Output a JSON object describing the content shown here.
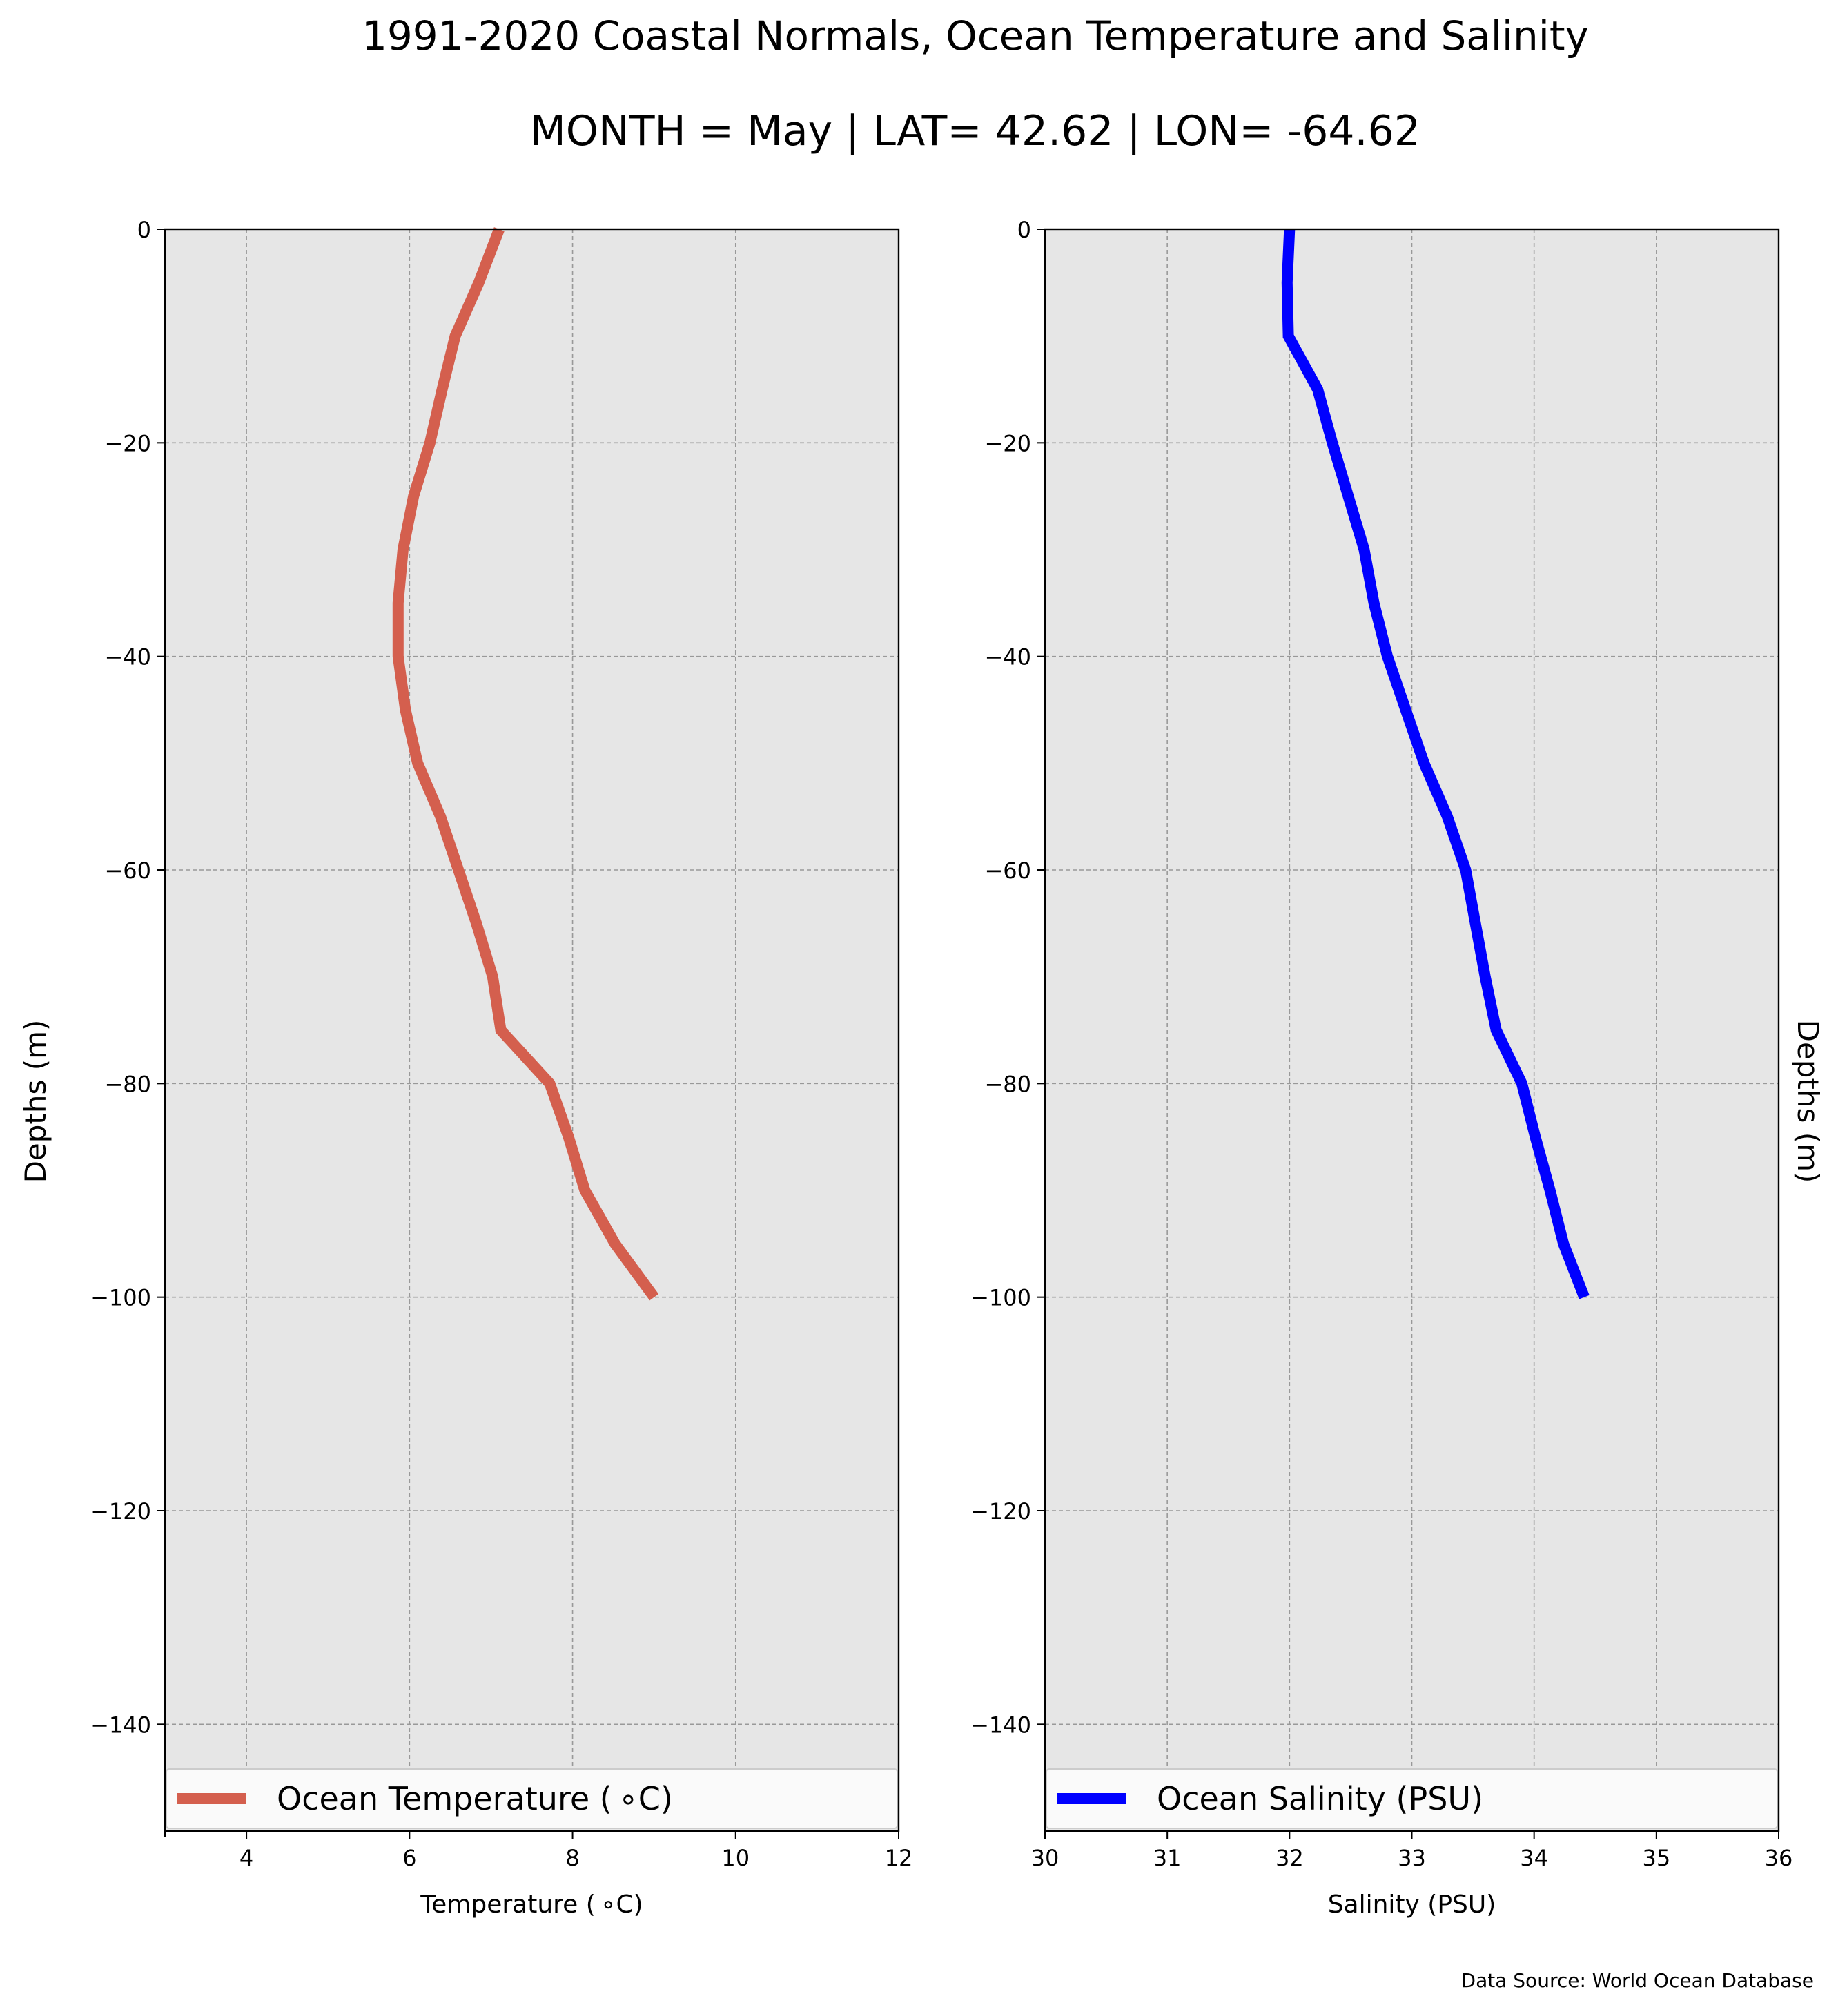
{
  "title": "1991-2020 Coastal Normals, Ocean Temperature and Salinity",
  "subtitle": "MONTH = May | LAT= 42.62 | LON= -64.62",
  "source": "Data Source: World Ocean Database",
  "colors": {
    "temperature": "#d45f4e",
    "salinity": "#0000ff",
    "plot_bg": "#e6e6e6",
    "grid": "#999999"
  },
  "chart_data": [
    {
      "type": "line",
      "xlabel": "Temperature ($^\\circ$C)",
      "xlabel_text": "Temperature ( ∘C)",
      "ylabel": "Depths (m)",
      "xlim": [
        3,
        12
      ],
      "ylim": [
        -150,
        0
      ],
      "xticks": [
        4,
        6,
        8,
        10,
        12
      ],
      "yticks": [
        0,
        -20,
        -40,
        -60,
        -80,
        -100,
        -120,
        -140
      ],
      "ytick_labels": [
        "0",
        "−20",
        "−40",
        "−60",
        "−80",
        "−100",
        "−120",
        "−140"
      ],
      "grid": true,
      "legend": "lower center",
      "series": [
        {
          "name": "Ocean Temperature ( ∘C)",
          "x": [
            7.1,
            6.85,
            6.56,
            6.4,
            6.25,
            6.05,
            5.92,
            5.86,
            5.86,
            5.95,
            6.1,
            6.38,
            6.6,
            6.82,
            7.02,
            7.12,
            7.72,
            7.95,
            8.15,
            8.52,
            9.0
          ],
          "y": [
            0,
            -5,
            -10,
            -15,
            -20,
            -25,
            -30,
            -35,
            -40,
            -45,
            -50,
            -55,
            -60,
            -65,
            -70,
            -75,
            -80,
            -85,
            -90,
            -95,
            -100
          ]
        }
      ]
    },
    {
      "type": "line",
      "xlabel": "Salinity (PSU)",
      "xlabel_text": "Salinity (PSU)",
      "ylabel": "Depths (m)",
      "xlim": [
        30,
        36
      ],
      "ylim": [
        -150,
        0
      ],
      "xticks": [
        30,
        31,
        32,
        33,
        34,
        35,
        36
      ],
      "yticks": [
        0,
        -20,
        -40,
        -60,
        -80,
        -100,
        -120,
        -140
      ],
      "ytick_labels": [
        "0",
        "−20",
        "−40",
        "−60",
        "−80",
        "−100",
        "−120",
        "−140"
      ],
      "grid": true,
      "legend": "lower center",
      "series": [
        {
          "name": "Ocean Salinity (PSU)",
          "x": [
            32.0,
            31.98,
            31.99,
            32.23,
            32.35,
            32.48,
            32.61,
            32.69,
            32.8,
            32.95,
            33.1,
            33.29,
            33.44,
            33.52,
            33.6,
            33.69,
            33.9,
            34.01,
            34.13,
            34.24,
            34.41
          ],
          "y": [
            0,
            -5,
            -10,
            -15,
            -20,
            -25,
            -30,
            -35,
            -40,
            -45,
            -50,
            -55,
            -60,
            -65,
            -70,
            -75,
            -80,
            -85,
            -90,
            -95,
            -100
          ]
        }
      ]
    }
  ]
}
